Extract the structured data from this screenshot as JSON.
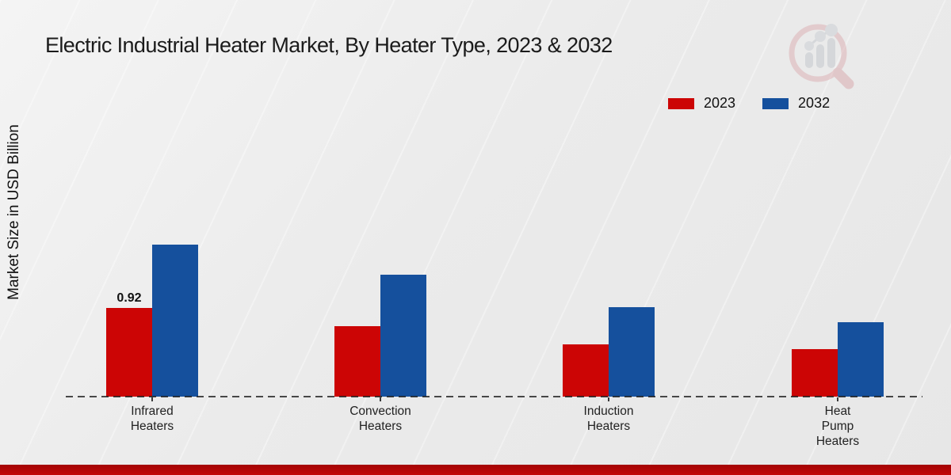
{
  "title": "Electric Industrial Heater Market, By Heater Type, 2023 & 2032",
  "y_axis_label": "Market Size in USD Billion",
  "legend": [
    {
      "label": "2023",
      "color": "#cc0505"
    },
    {
      "label": "2032",
      "color": "#15509d"
    }
  ],
  "watermark_icon": "market-research-magnifier-logo",
  "footer": {
    "color": "#b50505"
  },
  "chart_data": {
    "type": "bar",
    "title": "Electric Industrial Heater Market, By Heater Type, 2023 & 2032",
    "xlabel": "",
    "ylabel": "Market Size in USD Billion",
    "categories": [
      "Infrared Heaters",
      "Convection Heaters",
      "Induction Heaters",
      "Heat Pump Heaters"
    ],
    "category_label_lines": [
      [
        "Infrared",
        "Heaters"
      ],
      [
        "Convection",
        "Heaters"
      ],
      [
        "Induction",
        "Heaters"
      ],
      [
        "Heat",
        "Pump",
        "Heaters"
      ]
    ],
    "series": [
      {
        "name": "2023",
        "color": "#cc0505",
        "values": [
          0.92,
          0.73,
          0.54,
          0.49
        ]
      },
      {
        "name": "2032",
        "color": "#15509d",
        "values": [
          1.57,
          1.26,
          0.93,
          0.77
        ]
      }
    ],
    "data_labels": [
      {
        "series": "2023",
        "category": "Infrared Heaters",
        "text": "0.92",
        "value": 0.92
      }
    ],
    "ylim": [
      0,
      1.8
    ],
    "grid": false,
    "baseline_style": "dashed",
    "legend_position": "top-right"
  }
}
